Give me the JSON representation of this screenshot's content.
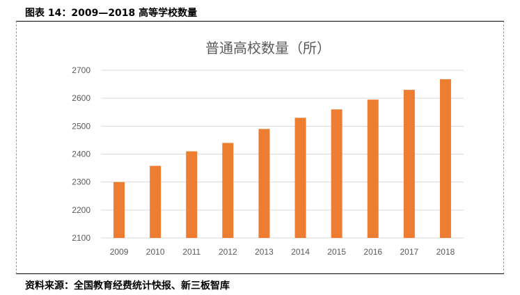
{
  "figure_title": "图表 14：2009—2018 高等学校数量",
  "source": "资料来源：全国教育经费统计快报、新三板智库",
  "chart_data": {
    "type": "bar",
    "title": "普通高校数量（所）",
    "categories": [
      "2009",
      "2010",
      "2011",
      "2012",
      "2013",
      "2014",
      "2015",
      "2016",
      "2017",
      "2018"
    ],
    "values": [
      2300,
      2358,
      2410,
      2440,
      2490,
      2530,
      2560,
      2595,
      2630,
      2668
    ],
    "ylim": [
      2100,
      2700
    ],
    "yticks": [
      "2100",
      "2200",
      "2300",
      "2400",
      "2500",
      "2600",
      "2700"
    ],
    "grid": true,
    "bar_color": "#ED7D31",
    "xlabel": "",
    "ylabel": ""
  }
}
